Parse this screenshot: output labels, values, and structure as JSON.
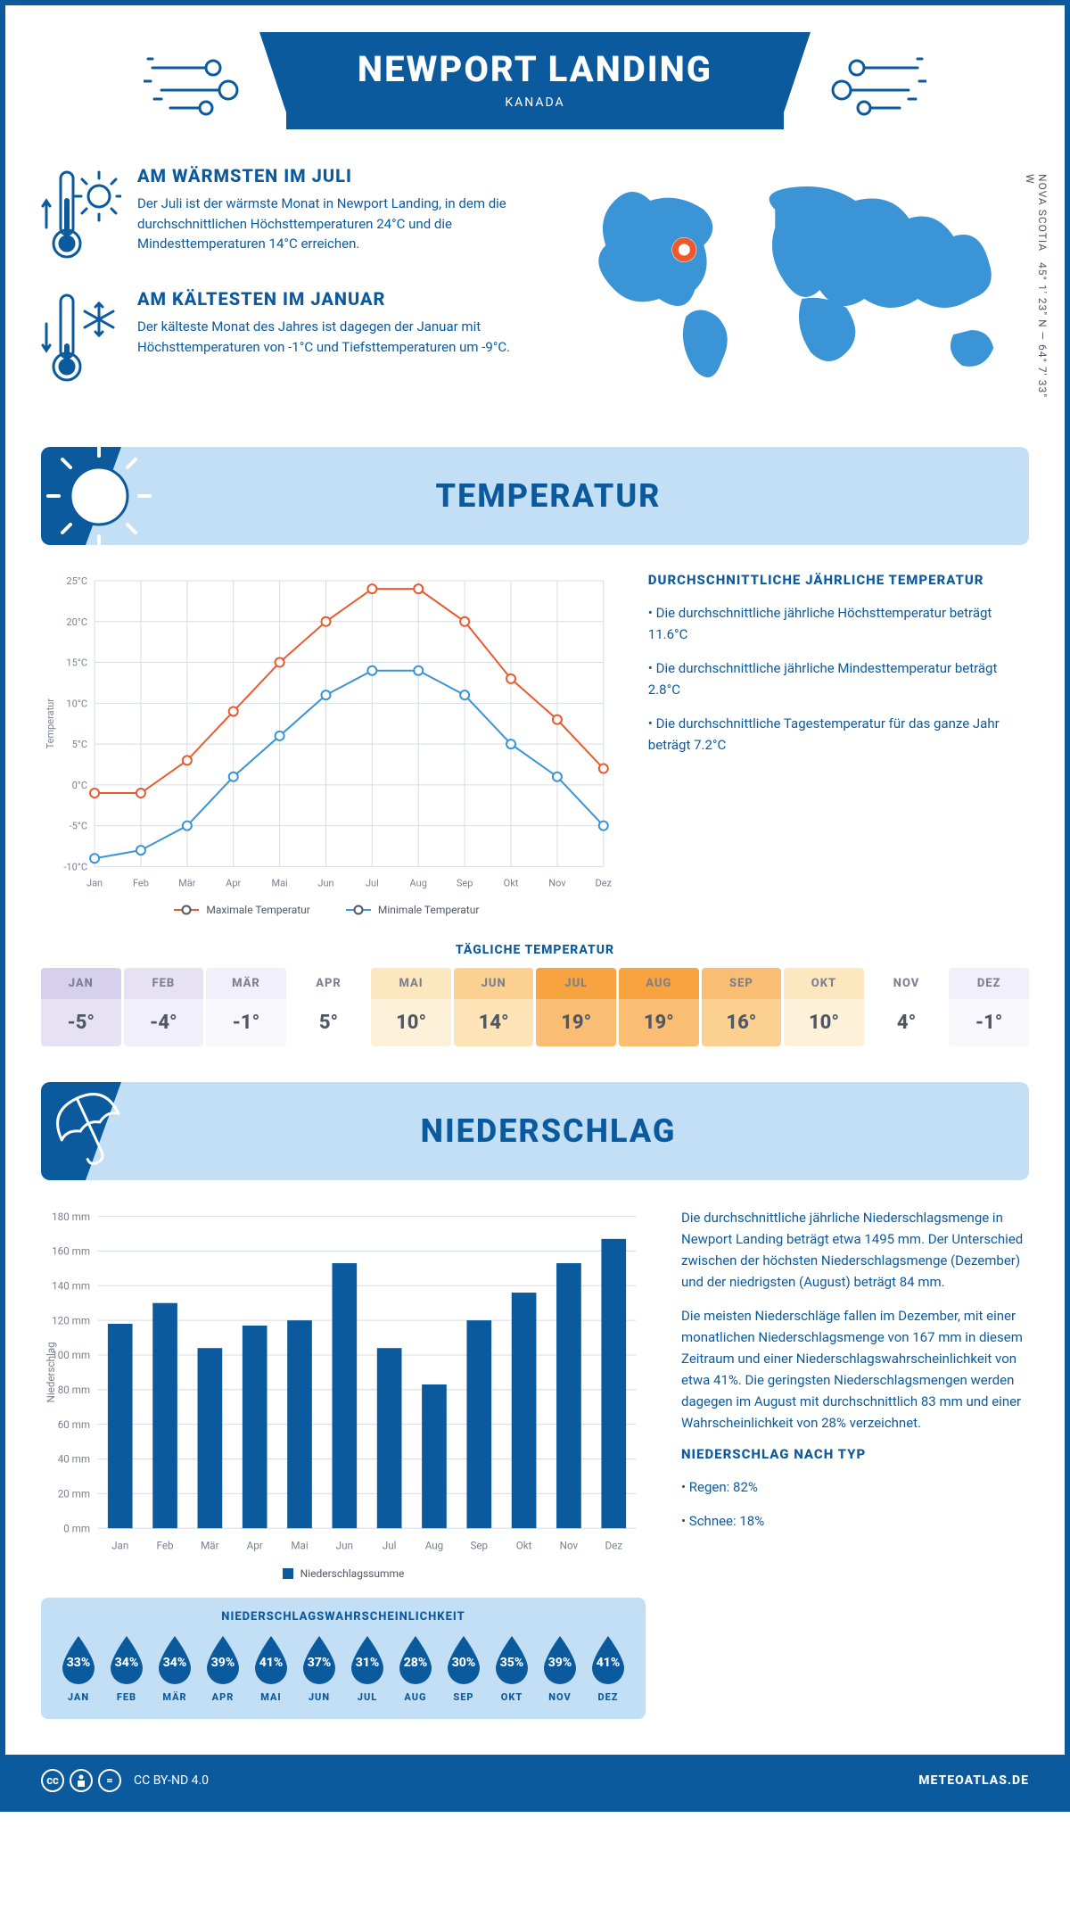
{
  "header": {
    "title": "NEWPORT LANDING",
    "subtitle": "KANADA"
  },
  "coords": {
    "region": "NOVA SCOTIA",
    "lat_lon": "45° 1' 23\" N — 64° 7' 33\" W"
  },
  "warmest": {
    "title": "AM WÄRMSTEN IM JULI",
    "text": "Der Juli ist der wärmste Monat in Newport Landing, in dem die durchschnittlichen Höchsttemperaturen 24°C und die Mindesttemperaturen 14°C erreichen."
  },
  "coldest": {
    "title": "AM KÄLTESTEN IM JANUAR",
    "text": "Der kälteste Monat des Jahres ist dagegen der Januar mit Höchsttemperaturen von -1°C und Tiefsttemperaturen um -9°C."
  },
  "temp_section": {
    "title": "TEMPERATUR"
  },
  "temp_chart": {
    "type": "line",
    "ylabel": "Temperatur",
    "months": [
      "Jan",
      "Feb",
      "Mär",
      "Apr",
      "Mai",
      "Jun",
      "Jul",
      "Aug",
      "Sep",
      "Okt",
      "Nov",
      "Dez"
    ],
    "ylim": [
      -10,
      25
    ],
    "ytick_step": 5,
    "yticks": [
      "-10°C",
      "-5°C",
      "0°C",
      "5°C",
      "10°C",
      "15°C",
      "20°C",
      "25°C"
    ],
    "grid_color": "#d8dce4",
    "axis_color": "#a0a6b4",
    "series": [
      {
        "name": "Maximale Temperatur",
        "color": "#ea5a2e",
        "values": [
          -1,
          -1,
          3,
          9,
          15,
          20,
          24,
          24,
          20,
          13,
          8,
          2
        ]
      },
      {
        "name": "Minimale Temperatur",
        "color": "#3a94d6",
        "values": [
          -9,
          -8,
          -5,
          1,
          6,
          11,
          14,
          14,
          11,
          5,
          1,
          -5
        ]
      }
    ],
    "marker": "circle",
    "marker_size": 5,
    "line_width": 2,
    "background_color": "#ffffff",
    "label_fontsize": 11
  },
  "temp_info": {
    "title": "DURCHSCHNITTLICHE JÄHRLICHE TEMPERATUR",
    "bullets": [
      "Die durchschnittliche jährliche Höchsttemperatur beträgt 11.6°C",
      "Die durchschnittliche jährliche Mindesttemperatur beträgt 2.8°C",
      "Die durchschnittliche Tagestemperatur für das ganze Jahr beträgt 7.2°C"
    ]
  },
  "daily_temp": {
    "title": "TÄGLICHE TEMPERATUR",
    "months": [
      "JAN",
      "FEB",
      "MÄR",
      "APR",
      "MAI",
      "JUN",
      "JUL",
      "AUG",
      "SEP",
      "OKT",
      "NOV",
      "DEZ"
    ],
    "values": [
      "-5°",
      "-4°",
      "-1°",
      "5°",
      "10°",
      "14°",
      "19°",
      "19°",
      "16°",
      "10°",
      "4°",
      "-1°"
    ],
    "cell_colors": [
      {
        "top": "#d7d0ec",
        "bot": "#e6e2f4"
      },
      {
        "top": "#e6e2f4",
        "bot": "#f1eff9"
      },
      {
        "top": "#f1eff9",
        "bot": "#f8f7fc"
      },
      {
        "top": "#ffffff",
        "bot": "#ffffff"
      },
      {
        "top": "#fde7bf",
        "bot": "#fef1d9"
      },
      {
        "top": "#fbd091",
        "bot": "#fde3b6"
      },
      {
        "top": "#f6a340",
        "bot": "#f9bd73"
      },
      {
        "top": "#f6a340",
        "bot": "#f9bd73"
      },
      {
        "top": "#f9bd73",
        "bot": "#fbd091"
      },
      {
        "top": "#fde7bf",
        "bot": "#fef1d9"
      },
      {
        "top": "#ffffff",
        "bot": "#ffffff"
      },
      {
        "top": "#f1eff9",
        "bot": "#f8f7fc"
      }
    ]
  },
  "rain_section": {
    "title": "NIEDERSCHLAG"
  },
  "rain_chart": {
    "type": "bar",
    "ylabel": "Niederschlag",
    "months": [
      "Jan",
      "Feb",
      "Mär",
      "Apr",
      "Mai",
      "Jun",
      "Jul",
      "Aug",
      "Sep",
      "Okt",
      "Nov",
      "Dez"
    ],
    "values": [
      118,
      130,
      104,
      117,
      120,
      153,
      104,
      83,
      120,
      136,
      153,
      167
    ],
    "ylim": [
      0,
      180
    ],
    "ytick_step": 20,
    "yticks": [
      "0 mm",
      "20 mm",
      "40 mm",
      "60 mm",
      "80 mm",
      "100 mm",
      "120 mm",
      "140 mm",
      "160 mm",
      "180 mm"
    ],
    "bar_color": "#0c5a9e",
    "grid_color": "#d8dce4",
    "bar_width": 0.55,
    "legend": "Niederschlagssumme",
    "label_fontsize": 11
  },
  "rain_info": {
    "para1": "Die durchschnittliche jährliche Niederschlagsmenge in Newport Landing beträgt etwa 1495 mm. Der Unterschied zwischen der höchsten Niederschlagsmenge (Dezember) und der niedrigsten (August) beträgt 84 mm.",
    "para2": "Die meisten Niederschläge fallen im Dezember, mit einer monatlichen Niederschlagsmenge von 167 mm in diesem Zeitraum und einer Niederschlagswahrscheinlichkeit von etwa 41%. Die geringsten Niederschlagsmengen werden dagegen im August mit durchschnittlich 83 mm und einer Wahrscheinlichkeit von 28% verzeichnet.",
    "type_title": "NIEDERSCHLAG NACH TYP",
    "type_bullets": [
      "Regen: 82%",
      "Schnee: 18%"
    ]
  },
  "rain_prob": {
    "title": "NIEDERSCHLAGSWAHRSCHEINLICHKEIT",
    "months": [
      "JAN",
      "FEB",
      "MÄR",
      "APR",
      "MAI",
      "JUN",
      "JUL",
      "AUG",
      "SEP",
      "OKT",
      "NOV",
      "DEZ"
    ],
    "values": [
      "33%",
      "34%",
      "34%",
      "39%",
      "41%",
      "37%",
      "31%",
      "28%",
      "30%",
      "35%",
      "39%",
      "41%"
    ],
    "drop_color": "#0c5a9e"
  },
  "footer": {
    "license": "CC BY-ND 4.0",
    "brand": "METEOATLAS.DE"
  },
  "colors": {
    "primary": "#0c5a9e",
    "light_blue": "#c3dff5",
    "orange": "#ea5a2e",
    "blue_line": "#3a94d6"
  }
}
